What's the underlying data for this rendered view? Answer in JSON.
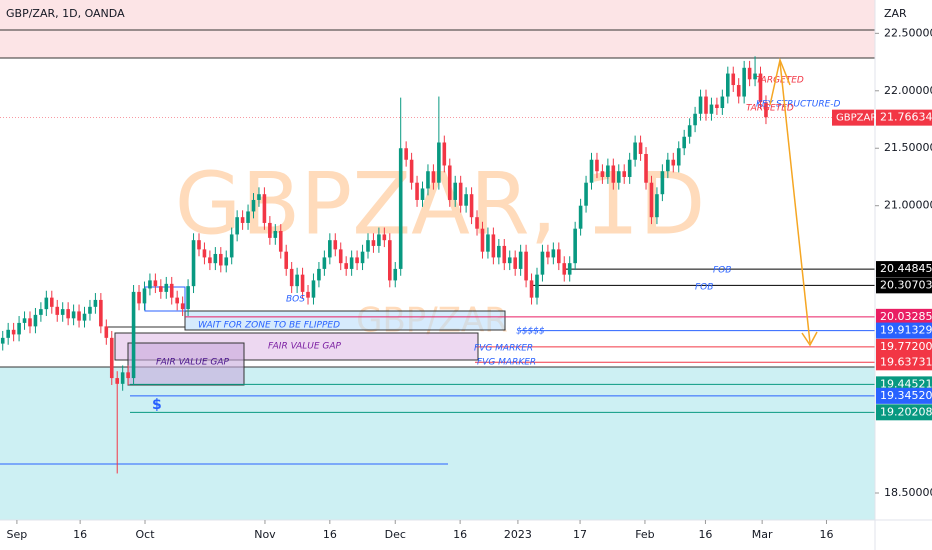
{
  "header": {
    "symbol": "GBP/ZAR, 1D, OANDA",
    "currency": "ZAR"
  },
  "watermark": {
    "main": "GBPZAR, 1D",
    "sub": "GBP/ZAR"
  },
  "annotations": {
    "fob1": "FOB",
    "fob2": "FOB",
    "bos": "BOS",
    "wait": "WAIT FOR ZONE TO BE FLIPPED",
    "fvg": "FAIR VALUE GAP",
    "fvg_box": "FAIR VALUE GAP",
    "fvg_marker1": "FVG MARKER",
    "fvg_marker2": "FVG MARKER",
    "liquidity": "$$$$$",
    "dollar": "$",
    "targeted1": "TARGETED",
    "key_structure": "KEY STRUCTURE-D",
    "targeted2": "TARGETED"
  },
  "chart_data": {
    "type": "candlestick",
    "up_color": "#089981",
    "down_color": "#f23645",
    "xlim": [
      -0.5,
      160
    ],
    "xticks": [
      {
        "value": 2.6,
        "label": "Sep"
      },
      {
        "value": 14.2,
        "label": "16"
      },
      {
        "value": 26.1,
        "label": "Oct"
      },
      {
        "value": 48.1,
        "label": "Nov"
      },
      {
        "value": 60,
        "label": "16"
      },
      {
        "value": 72,
        "label": "Dec"
      },
      {
        "value": 83.9,
        "label": "16"
      },
      {
        "value": 94.5,
        "label": "2023"
      },
      {
        "value": 105.9,
        "label": "17"
      },
      {
        "value": 117.8,
        "label": "Feb"
      },
      {
        "value": 128.9,
        "label": "16"
      },
      {
        "value": 139.3,
        "label": "Mar"
      },
      {
        "value": 151.1,
        "label": "16"
      }
    ],
    "ylim": [
      18.265,
      22.79
    ],
    "yticks": [
      {
        "value": 22.5,
        "label": "22.50000"
      },
      {
        "value": 22,
        "label": "22.00000"
      },
      {
        "value": 21.5,
        "label": "21.50000"
      },
      {
        "value": 21,
        "label": "21.00000"
      },
      {
        "value": 18.5,
        "label": "18.50000"
      }
    ],
    "open": [
      19.8,
      19.85,
      19.92,
      19.88,
      19.98,
      20.02,
      19.95,
      20.05,
      20.1,
      20.2,
      20.12,
      20.05,
      20.1,
      20.02,
      20.08,
      20.0,
      20.06,
      20.12,
      20.18,
      19.95,
      19.85,
      19.5,
      19.45,
      19.55,
      19.5,
      20.25,
      20.15,
      20.28,
      20.35,
      20.3,
      20.25,
      20.32,
      20.2,
      20.15,
      20.1,
      20.3,
      20.7,
      20.62,
      20.55,
      20.5,
      20.58,
      20.48,
      20.55,
      20.75,
      20.9,
      20.85,
      20.95,
      21.05,
      21.1,
      20.85,
      20.72,
      20.78,
      20.6,
      20.45,
      20.3,
      20.4,
      20.25,
      20.2,
      20.35,
      20.45,
      20.55,
      20.7,
      20.62,
      20.5,
      20.45,
      20.55,
      20.5,
      20.6,
      20.7,
      20.65,
      20.75,
      20.7,
      20.35,
      20.45,
      21.5,
      21.4,
      21.2,
      21.05,
      21.15,
      21.3,
      21.2,
      21.55,
      21.35,
      21.05,
      21.2,
      21.0,
      21.1,
      20.9,
      20.8,
      20.6,
      20.75,
      20.55,
      20.65,
      20.5,
      20.55,
      20.45,
      20.6,
      20.35,
      20.2,
      20.4,
      20.6,
      20.55,
      20.62,
      20.5,
      20.4,
      20.5,
      20.8,
      21.0,
      21.2,
      21.4,
      21.3,
      21.25,
      21.35,
      21.2,
      21.3,
      21.25,
      21.4,
      21.55,
      21.45,
      21.2,
      20.9,
      21.1,
      21.3,
      21.4,
      21.35,
      21.5,
      21.6,
      21.7,
      21.8,
      21.95,
      21.8,
      21.88,
      21.85,
      21.95,
      22.15,
      22.05,
      21.95,
      22.2,
      22.1,
      22.15,
      21.9
    ],
    "high": [
      19.91,
      19.98,
      19.98,
      20.04,
      20.08,
      20.08,
      20.11,
      20.16,
      20.26,
      20.26,
      20.18,
      20.16,
      20.16,
      20.14,
      20.14,
      20.12,
      20.18,
      20.24,
      20.24,
      20.01,
      19.91,
      19.56,
      19.61,
      19.61,
      20.31,
      20.31,
      20.34,
      20.41,
      20.41,
      20.36,
      20.38,
      20.38,
      20.26,
      20.21,
      20.36,
      20.76,
      20.76,
      20.68,
      20.61,
      20.64,
      20.64,
      20.61,
      20.81,
      20.96,
      20.96,
      21.01,
      21.11,
      21.16,
      21.16,
      20.91,
      20.84,
      20.84,
      20.66,
      20.51,
      20.46,
      20.46,
      20.31,
      20.41,
      20.51,
      20.61,
      20.76,
      20.76,
      20.68,
      20.56,
      20.61,
      20.61,
      20.66,
      20.76,
      20.76,
      20.81,
      20.81,
      20.76,
      20.51,
      21.94,
      21.56,
      21.46,
      21.26,
      21.21,
      21.36,
      21.36,
      21.95,
      21.61,
      21.41,
      21.26,
      21.26,
      21.16,
      21.16,
      20.96,
      20.86,
      20.81,
      20.81,
      20.71,
      20.71,
      20.61,
      20.61,
      20.66,
      20.66,
      20.41,
      20.46,
      20.66,
      20.66,
      20.68,
      20.68,
      20.56,
      20.56,
      20.86,
      21.06,
      21.26,
      21.46,
      21.46,
      21.36,
      21.41,
      21.41,
      21.36,
      21.36,
      21.46,
      21.61,
      21.61,
      21.51,
      21.26,
      21.16,
      21.36,
      21.46,
      21.46,
      21.56,
      21.66,
      21.76,
      21.86,
      22.01,
      22.01,
      21.94,
      21.94,
      22.01,
      22.21,
      22.21,
      22.11,
      22.26,
      22.26,
      22.3,
      22.21,
      21.96
    ],
    "low": [
      19.74,
      19.79,
      19.82,
      19.82,
      19.92,
      19.89,
      19.89,
      19.99,
      20.04,
      20.06,
      19.99,
      19.99,
      19.96,
      19.96,
      19.94,
      19.94,
      20.0,
      20.06,
      19.89,
      19.79,
      19.44,
      18.67,
      19.39,
      19.44,
      19.44,
      20.09,
      20.09,
      20.22,
      20.24,
      20.19,
      20.19,
      20.14,
      20.09,
      20.04,
      20.04,
      20.24,
      20.56,
      20.49,
      20.44,
      20.44,
      20.42,
      20.42,
      20.49,
      20.69,
      20.79,
      20.79,
      20.89,
      20.99,
      20.79,
      20.66,
      20.66,
      20.54,
      20.39,
      20.24,
      20.24,
      20.19,
      20.14,
      20.14,
      20.29,
      20.39,
      20.49,
      20.56,
      20.44,
      20.39,
      20.39,
      20.44,
      20.44,
      20.54,
      20.59,
      20.59,
      20.64,
      20.29,
      20.29,
      20.39,
      21.34,
      21.14,
      20.99,
      20.99,
      21.09,
      21.14,
      21.14,
      21.29,
      20.99,
      20.99,
      20.94,
      20.94,
      20.84,
      20.74,
      20.54,
      20.54,
      20.49,
      20.49,
      20.44,
      20.44,
      20.39,
      20.39,
      20.29,
      20.14,
      20.14,
      20.34,
      20.49,
      20.49,
      20.44,
      20.34,
      20.34,
      20.44,
      20.74,
      20.94,
      21.14,
      21.24,
      21.19,
      21.19,
      21.14,
      21.14,
      21.19,
      21.19,
      21.34,
      21.39,
      21.14,
      20.84,
      20.84,
      21.04,
      21.24,
      21.29,
      21.29,
      21.44,
      21.54,
      21.64,
      21.74,
      21.74,
      21.74,
      21.79,
      21.79,
      21.89,
      21.99,
      21.89,
      21.89,
      22.04,
      22.04,
      21.84,
      21.71
    ],
    "close": [
      19.85,
      19.92,
      19.88,
      19.98,
      20.02,
      19.95,
      20.05,
      20.1,
      20.2,
      20.12,
      20.05,
      20.1,
      20.02,
      20.08,
      20.0,
      20.06,
      20.12,
      20.18,
      19.95,
      19.85,
      19.5,
      19.45,
      19.55,
      19.5,
      20.25,
      20.15,
      20.28,
      20.35,
      20.3,
      20.25,
      20.32,
      20.2,
      20.15,
      20.1,
      20.3,
      20.7,
      20.62,
      20.55,
      20.5,
      20.58,
      20.48,
      20.55,
      20.75,
      20.9,
      20.85,
      20.95,
      21.05,
      21.1,
      20.85,
      20.72,
      20.78,
      20.6,
      20.45,
      20.3,
      20.4,
      20.25,
      20.2,
      20.35,
      20.45,
      20.55,
      20.7,
      20.62,
      20.5,
      20.45,
      20.55,
      20.5,
      20.6,
      20.7,
      20.65,
      20.75,
      20.7,
      20.35,
      20.45,
      21.5,
      21.4,
      21.2,
      21.05,
      21.15,
      21.3,
      21.2,
      21.55,
      21.35,
      21.05,
      21.2,
      21.0,
      21.1,
      20.9,
      20.8,
      20.6,
      20.75,
      20.55,
      20.65,
      20.5,
      20.55,
      20.45,
      20.6,
      20.35,
      20.2,
      20.4,
      20.6,
      20.55,
      20.62,
      20.5,
      20.4,
      20.5,
      20.8,
      21.0,
      21.2,
      21.4,
      21.3,
      21.25,
      21.35,
      21.2,
      21.3,
      21.25,
      21.4,
      21.55,
      21.45,
      21.2,
      20.9,
      21.1,
      21.3,
      21.4,
      21.35,
      21.5,
      21.6,
      21.7,
      21.8,
      21.95,
      21.8,
      21.88,
      21.85,
      21.95,
      22.15,
      22.05,
      21.95,
      22.2,
      22.1,
      22.15,
      21.9,
      21.77
    ],
    "levels": [
      {
        "price": 20.44845,
        "color": "#000000"
      },
      {
        "price": 20.30703,
        "color": "#000000"
      },
      {
        "price": 20.03285,
        "color": "#e91e63"
      },
      {
        "price": 19.91329,
        "color": "#2962ff"
      },
      {
        "price": {
          "value": 19.772,
          "label": "19.77200"
        },
        "color": "#f23645"
      },
      {
        "price": 19.63731,
        "color": "#f23645"
      },
      {
        "price": 19.44521,
        "color": "#089981"
      },
      {
        "price": {
          "value": 19.3452,
          "label": "19.34520"
        },
        "color": "#2962ff"
      },
      {
        "price": 19.20208,
        "color": "#089981"
      }
    ],
    "last": {
      "name": "GBPZAR",
      "price": 21.76634,
      "color": "#f23645"
    }
  }
}
